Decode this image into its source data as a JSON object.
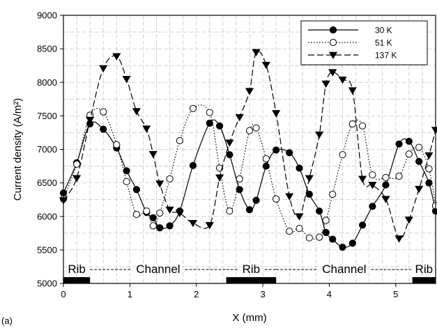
{
  "chart_data": {
    "type": "line",
    "title": "",
    "panel_label": "(a)",
    "xlabel": "X (mm)",
    "ylabel": "Current density (A/m²)",
    "xlim": [
      0,
      5.6
    ],
    "ylim": [
      5000,
      9000
    ],
    "xticks": [
      0,
      1,
      2,
      3,
      4,
      5
    ],
    "yticks": [
      5000,
      5500,
      6000,
      6500,
      7000,
      7500,
      8000,
      8500,
      9000
    ],
    "grid": "dashed",
    "legend_position": "top-right",
    "series": [
      {
        "name": "30 K",
        "marker": "filled-circle",
        "line": "solid",
        "color": "#000000",
        "x": [
          0,
          0.2,
          0.4,
          0.6,
          0.8,
          0.95,
          1.1,
          1.25,
          1.35,
          1.45,
          1.6,
          1.75,
          1.95,
          2.2,
          2.35,
          2.5,
          2.65,
          2.8,
          2.9,
          3.05,
          3.2,
          3.4,
          3.55,
          3.7,
          3.85,
          3.95,
          4.05,
          4.2,
          4.35,
          4.5,
          4.65,
          4.85,
          5.05,
          5.2,
          5.35,
          5.5,
          5.6
        ],
        "y": [
          6350,
          6800,
          7380,
          7300,
          7020,
          6680,
          6400,
          6060,
          5980,
          5830,
          5860,
          6080,
          6760,
          7390,
          7350,
          6920,
          6400,
          6100,
          6240,
          6750,
          6990,
          6950,
          6720,
          6330,
          6080,
          5760,
          5660,
          5540,
          5600,
          5870,
          6150,
          6470,
          7080,
          7120,
          6820,
          6500,
          6080
        ]
      },
      {
        "name": "51 K",
        "marker": "open-circle",
        "line": "dotted",
        "color": "#000000",
        "x": [
          0,
          0.2,
          0.4,
          0.6,
          0.8,
          0.95,
          1.1,
          1.25,
          1.35,
          1.45,
          1.6,
          1.75,
          1.95,
          2.2,
          2.35,
          2.5,
          2.65,
          2.8,
          2.9,
          3.05,
          3.2,
          3.4,
          3.55,
          3.7,
          3.85,
          3.95,
          4.05,
          4.2,
          4.35,
          4.5,
          4.65,
          4.85,
          5.05,
          5.2,
          5.35,
          5.5,
          5.6
        ],
        "y": [
          6260,
          6780,
          7510,
          7560,
          7070,
          6520,
          6030,
          6080,
          5860,
          6050,
          6560,
          7130,
          7610,
          7550,
          6720,
          6080,
          6560,
          7280,
          7320,
          6860,
          6260,
          5780,
          5820,
          5680,
          5690,
          5940,
          6330,
          6920,
          7380,
          7350,
          6620,
          6580,
          6600,
          6930,
          7030,
          6710,
          6160
        ]
      },
      {
        "name": "137 K",
        "marker": "filled-triangle-down",
        "line": "dashed",
        "color": "#000000",
        "x": [
          0,
          0.2,
          0.4,
          0.6,
          0.8,
          0.95,
          1.1,
          1.25,
          1.35,
          1.45,
          1.6,
          1.75,
          1.95,
          2.2,
          2.35,
          2.5,
          2.65,
          2.8,
          2.9,
          3.05,
          3.2,
          3.4,
          3.55,
          3.7,
          3.85,
          3.95,
          4.05,
          4.2,
          4.35,
          4.5,
          4.65,
          4.85,
          5.05,
          5.2,
          5.35,
          5.5,
          5.6
        ],
        "y": [
          6240,
          6570,
          7440,
          8210,
          8390,
          8050,
          7570,
          7310,
          6930,
          6490,
          6100,
          6050,
          5900,
          5870,
          6580,
          7100,
          7480,
          7870,
          8450,
          8260,
          7540,
          6300,
          6000,
          6570,
          7220,
          7980,
          8150,
          8040,
          7880,
          6560,
          6470,
          6260,
          5670,
          5950,
          6410,
          6910,
          7290
        ]
      }
    ],
    "regions": [
      {
        "label": "Rib",
        "x_start": 0,
        "x_end": 0.4
      },
      {
        "label": "Channel",
        "x_start": 0.4,
        "x_end": 2.45
      },
      {
        "label": "Rib",
        "x_start": 2.45,
        "x_end": 3.2
      },
      {
        "label": "Channel",
        "x_start": 3.2,
        "x_end": 5.25
      },
      {
        "label": "Rib",
        "x_start": 5.25,
        "x_end": 5.6
      }
    ]
  }
}
